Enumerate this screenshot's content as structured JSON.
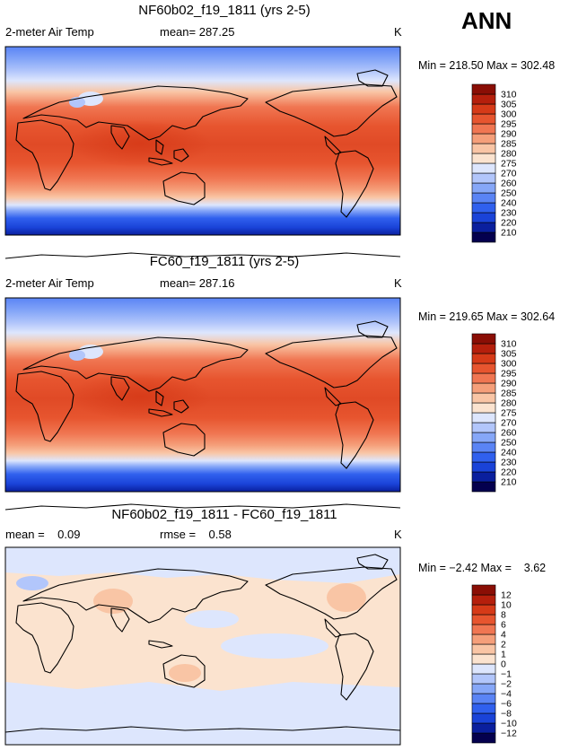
{
  "season": "ANN",
  "colors": {
    "abs": [
      "#04004e",
      "#0a1f9e",
      "#1a43d8",
      "#3060ee",
      "#5a84f5",
      "#86a7f8",
      "#b2c6fb",
      "#dde6fd",
      "#fbe3cf",
      "#f9c5a5",
      "#f59f7a",
      "#f07652",
      "#e7552f",
      "#d63a18",
      "#b51f0c",
      "#8a0e05"
    ],
    "diff": [
      "#04004e",
      "#0a1f9e",
      "#1a43d8",
      "#3060ee",
      "#5a84f5",
      "#86a7f8",
      "#b2c6fb",
      "#dde6fd",
      "#fbe3cf",
      "#f9c5a5",
      "#f59f7a",
      "#f07652",
      "#e7552f",
      "#d63a18",
      "#b51f0c",
      "#8a0e05"
    ]
  },
  "chart_data": [
    {
      "type": "heatmap",
      "title": "NF60b02_f19_1811 (yrs 2-5)",
      "variable": "2-meter Air Temp",
      "mean_label": "mean= 287.25",
      "units": "K",
      "min_max_label": "Min = 218.50 Max = 302.48",
      "min": 218.5,
      "max": 302.48,
      "mean": 287.25,
      "colorbar_levels": [
        "210",
        "220",
        "230",
        "240",
        "250",
        "260",
        "270",
        "275",
        "280",
        "285",
        "290",
        "295",
        "300",
        "305",
        "310"
      ]
    },
    {
      "type": "heatmap",
      "title": "FC60_f19_1811 (yrs 2-5)",
      "variable": "2-meter Air Temp",
      "mean_label": "mean= 287.16",
      "units": "K",
      "min_max_label": "Min = 219.65 Max = 302.64",
      "min": 219.65,
      "max": 302.64,
      "mean": 287.16,
      "colorbar_levels": [
        "210",
        "220",
        "230",
        "240",
        "250",
        "260",
        "270",
        "275",
        "280",
        "285",
        "290",
        "295",
        "300",
        "305",
        "310"
      ]
    },
    {
      "type": "heatmap",
      "title": "NF60b02_f19_1811 - FC60_f19_1811",
      "mean_label": "mean =    0.09",
      "rmse_label": "rmse =    0.58",
      "units": "K",
      "min_max_label": "Min = −2.42 Max =    3.62",
      "min": -2.42,
      "max": 3.62,
      "mean": 0.09,
      "rmse": 0.58,
      "colorbar_levels": [
        "−12",
        "−10",
        "−8",
        "−6",
        "−4",
        "−2",
        "−1",
        "0",
        "1",
        "2",
        "4",
        "6",
        "8",
        "10",
        "12"
      ]
    }
  ]
}
